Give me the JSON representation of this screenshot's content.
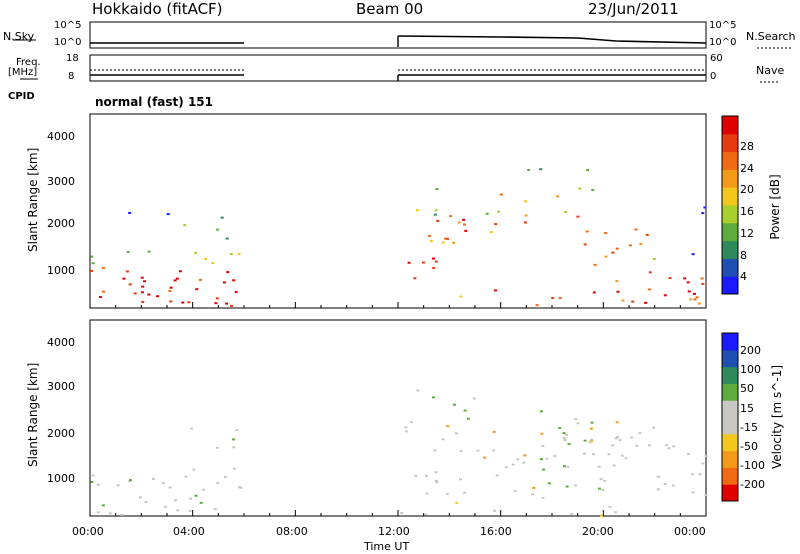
{
  "header": {
    "radar": "Hokkaido (fitACF)",
    "beam": "Beam 00",
    "date": "23/Jun/2011"
  },
  "top_panels": {
    "nsky_label": "N.Sky",
    "nsky_ticks": [
      "10^5",
      "10^0"
    ],
    "nsearch_label": "N.Search",
    "freq_label_1": "Freq.",
    "freq_label_2": "[MHz]",
    "freq_ticks": [
      "18",
      "8"
    ],
    "nave_label": "Nave",
    "nave_ticks": [
      "60",
      "0"
    ],
    "cpid_label": "CPID",
    "cpid_value": "normal (fast) 151"
  },
  "x_axis": {
    "label": "Time UT",
    "ticks": [
      "00:00",
      "04:00",
      "08:00",
      "12:00",
      "16:00",
      "20:00",
      "00:00"
    ]
  },
  "colors": {
    "power_scale": [
      "#1a1aff",
      "#1f4fb0",
      "#2e8a5a",
      "#5cab3c",
      "#a9cf2c",
      "#f2c81c",
      "#f39a18",
      "#f06a14",
      "#e83a10",
      "#e00000"
    ],
    "velocity_scale": [
      "#e00000",
      "#f06a14",
      "#f39a18",
      "#f2c81c",
      "#c8c8c0",
      "#c8c8c0",
      "#5cab3c",
      "#2e8a5a",
      "#1f4fb0",
      "#1a1aff"
    ]
  },
  "chart_data": [
    {
      "type": "heatmap",
      "title": "",
      "xlabel": "",
      "ylabel": "Slant Range [km]",
      "xlim": [
        0,
        24
      ],
      "ylim": [
        180,
        4500
      ],
      "yticks": [
        "1000",
        "2000",
        "3000",
        "4000"
      ],
      "colorbar": {
        "label": "Power [dB]",
        "ticks": [
          "28",
          "24",
          "20",
          "16",
          "12",
          "8",
          "4"
        ],
        "range": [
          0,
          30
        ]
      },
      "data_coverage_hours": [
        [
          0,
          6
        ],
        [
          12,
          24
        ]
      ]
    },
    {
      "type": "heatmap",
      "title": "",
      "xlabel": "Time UT",
      "ylabel": "Slant Range [km]",
      "xlim": [
        0,
        24
      ],
      "ylim": [
        180,
        4500
      ],
      "yticks": [
        "1000",
        "2000",
        "3000",
        "4000"
      ],
      "colorbar": {
        "label": "Velocity [m s^-1]",
        "ticks": [
          "200",
          "100",
          "50",
          "15",
          "-15",
          "-50",
          "-100",
          "-200"
        ],
        "range": [
          -250,
          250
        ]
      },
      "data_coverage_hours": [
        [
          0,
          6
        ],
        [
          12,
          24
        ]
      ]
    }
  ]
}
